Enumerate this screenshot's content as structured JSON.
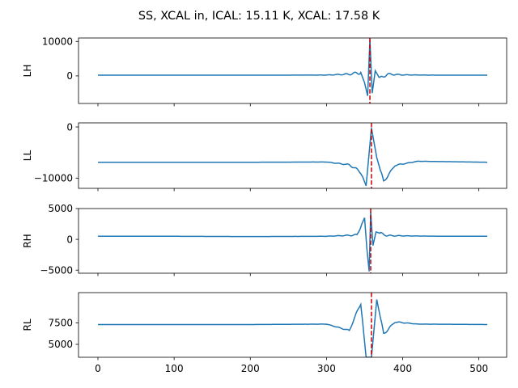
{
  "chart_data": {
    "type": "line",
    "title": "SS, XCAL in, ICAL: 15.11 K, XCAL: 17.58 K",
    "xlim": [
      -25.5,
      536.5
    ],
    "x_ticks": [
      "0",
      "100",
      "200",
      "300",
      "400",
      "500"
    ],
    "x_tick_values": [
      0,
      100,
      200,
      300,
      400,
      500
    ],
    "line_color": "#1f77b4",
    "marker_color": "#cc0000",
    "subplots": [
      {
        "ylabel": "LH",
        "ylim": [
          -8000,
          11000
        ],
        "y_ticks": [
          "10000",
          "0"
        ],
        "y_tick_values": [
          10000,
          0
        ],
        "baseline": 200,
        "peak_index": 357,
        "peak_value": 10500,
        "trough_value": -5800,
        "ripple_scale": 1,
        "series": [
          {
            "x": [
              0,
              100,
              200,
              300,
              330,
              345,
              350,
              354,
              357,
              360,
              364,
              370,
              380,
              400,
              450,
              511
            ],
            "values": [
              200,
              200,
              200,
              250,
              500,
              1000,
              -2000,
              -5800,
              10500,
              -5000,
              1500,
              -800,
              500,
              300,
              200,
              200
            ]
          }
        ],
        "marker_x": 357
      },
      {
        "ylabel": "LL",
        "ylim": [
          -12000,
          800
        ],
        "y_ticks": [
          "0",
          "−10000"
        ],
        "y_tick_values": [
          0,
          -10000
        ],
        "baseline": -6900,
        "peak_index": 359,
        "peak_value": -200,
        "trough_value": -11500,
        "ripple_scale": 1,
        "series": [
          {
            "x": [
              0,
              100,
              200,
              300,
              330,
              345,
              352,
              359,
              366,
              375,
              390,
              420,
              511
            ],
            "values": [
              -6900,
              -6900,
              -6900,
              -6850,
              -7400,
              -8800,
              -11500,
              -200,
              -6000,
              -10700,
              -7500,
              -6700,
              -6900
            ]
          }
        ],
        "marker_x": 359
      },
      {
        "ylabel": "RH",
        "ylim": [
          -5500,
          5000
        ],
        "y_ticks": [
          "5000",
          "0",
          "−5000"
        ],
        "y_tick_values": [
          5000,
          0,
          -5000
        ],
        "baseline": 500,
        "peak_index": 358,
        "peak_value": 4400,
        "trough_value": -5200,
        "ripple_scale": 1,
        "series": [
          {
            "x": [
              0,
              100,
              200,
              300,
              340,
              350,
              353,
              356,
              358,
              361,
              365,
              380,
              450,
              511
            ],
            "values": [
              500,
              500,
              450,
              500,
              700,
              3500,
              -1500,
              -5200,
              4400,
              -1000,
              1200,
              600,
              500,
              500
            ]
          }
        ],
        "marker_x": 358
      },
      {
        "ylabel": "RL",
        "ylim": [
          3500,
          11000
        ],
        "y_ticks": [
          "7500",
          "5000"
        ],
        "y_tick_values": [
          7500,
          5000
        ],
        "baseline": 7300,
        "peak_index": 359,
        "peak_value": 3500,
        "trough_value": 10200,
        "ripple_scale": 1,
        "series": [
          {
            "x": [
              0,
              100,
              200,
              300,
              330,
              345,
              352,
              359,
              366,
              375,
              390,
              420,
              511
            ],
            "values": [
              7300,
              7300,
              7300,
              7350,
              6600,
              9800,
              3500,
              3500,
              10200,
              6200,
              7600,
              7350,
              7300
            ]
          }
        ],
        "marker_x": 359
      }
    ]
  }
}
